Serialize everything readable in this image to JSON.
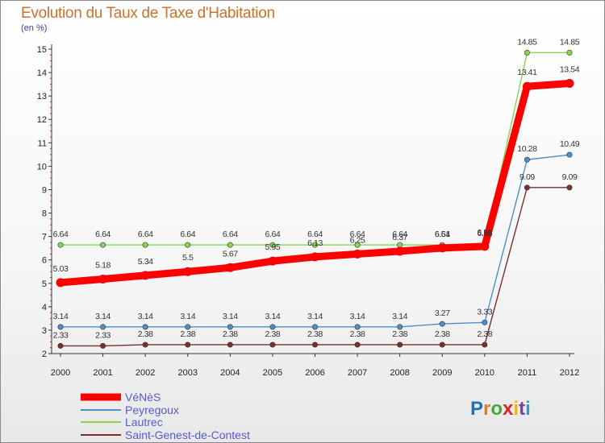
{
  "chart_data": {
    "type": "line",
    "title": "Evolution du Taux de Taxe d'Habitation",
    "unit_label": "(en %)",
    "x": [
      "2000",
      "2001",
      "2002",
      "2003",
      "2004",
      "2005",
      "2006",
      "2007",
      "2008",
      "2009",
      "2010",
      "2011",
      "2012"
    ],
    "ylim": [
      2,
      15
    ],
    "yticks": [
      2,
      3,
      4,
      5,
      6,
      7,
      8,
      9,
      10,
      11,
      12,
      13,
      14,
      15
    ],
    "grid": false,
    "legend_position": "bottom-left",
    "series": [
      {
        "name": "VéNèS",
        "color": "#ff0000",
        "values": [
          5.03,
          5.18,
          5.34,
          5.5,
          5.67,
          5.95,
          6.13,
          6.25,
          6.37,
          6.51,
          6.58,
          13.41,
          13.54
        ],
        "labels": [
          "5.03",
          "5.18",
          "5.34",
          "5.5",
          "5.67",
          "5.95",
          "6.13",
          "6.25",
          "6.37",
          "6.51",
          "6.58",
          "13.41",
          "13.54"
        ]
      },
      {
        "name": "Peyregoux",
        "color": "#4f8fc9",
        "values": [
          3.14,
          3.14,
          3.14,
          3.14,
          3.14,
          3.14,
          3.14,
          3.14,
          3.14,
          3.27,
          3.33,
          10.28,
          10.49
        ],
        "labels": [
          "3.14",
          "3.14",
          "3.14",
          "3.14",
          "3.14",
          "3.14",
          "3.14",
          "3.14",
          "3.14",
          "3.27",
          "3.33",
          "10.28",
          "10.49"
        ]
      },
      {
        "name": "Lautrec",
        "color": "#88d650",
        "values": [
          6.64,
          6.64,
          6.64,
          6.64,
          6.64,
          6.64,
          6.64,
          6.64,
          6.64,
          6.64,
          6.68,
          14.85,
          14.85
        ],
        "labels": [
          "6.64",
          "6.64",
          "6.64",
          "6.64",
          "6.64",
          "6.64",
          "6.64",
          "6.64",
          "6.64",
          "6.64",
          "6.68",
          "14.85",
          "14.85"
        ]
      },
      {
        "name": "Saint-Genest-de-Contest",
        "color": "#7a2e2e",
        "values": [
          2.33,
          2.33,
          2.38,
          2.38,
          2.38,
          2.38,
          2.38,
          2.38,
          2.38,
          2.38,
          2.38,
          9.09,
          9.09
        ],
        "labels": [
          "2.33",
          "2.33",
          "2.38",
          "2.38",
          "2.38",
          "2.38",
          "2.38",
          "2.38",
          "2.38",
          "2.38",
          "2.38",
          "9.09",
          "9.09"
        ]
      }
    ]
  },
  "logo": {
    "text": "Proxiti"
  }
}
